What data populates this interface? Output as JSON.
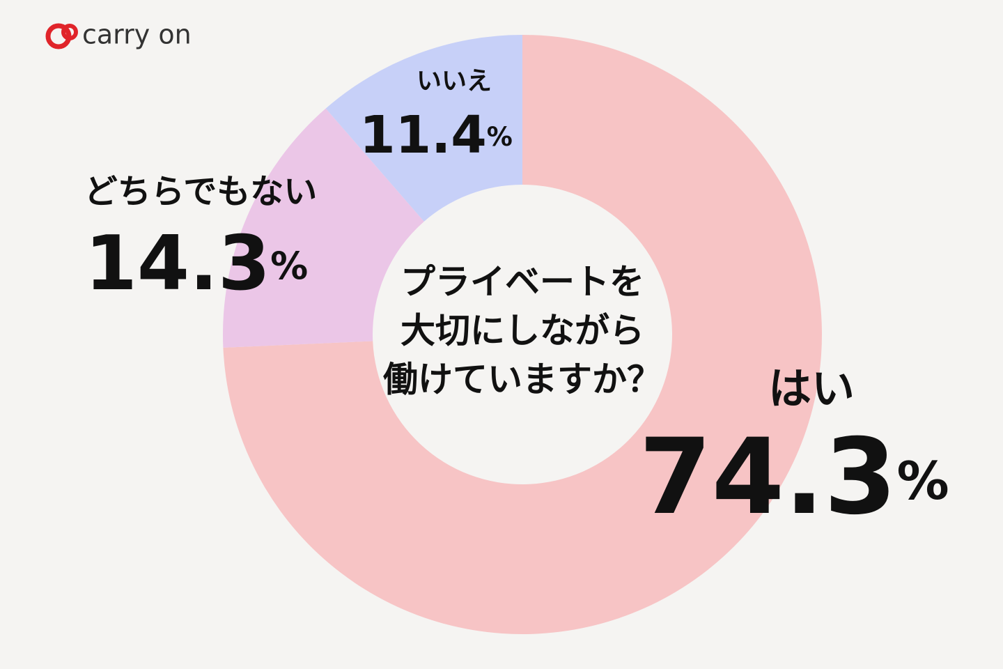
{
  "logo": "carry on",
  "chart_data": {
    "type": "donut",
    "title": [
      "プライベートを",
      "大切にしながら",
      "働けていますか？"
    ],
    "categories": [
      "はい",
      "どちらでもない",
      "いいえ"
    ],
    "values": [
      74.3,
      14.3,
      11.4
    ],
    "value_labels": [
      "74.3%",
      "14.3%",
      "11.4%"
    ],
    "colors": [
      "#f7c4c5",
      "#ebc6e7",
      "#c7d0f8"
    ]
  }
}
